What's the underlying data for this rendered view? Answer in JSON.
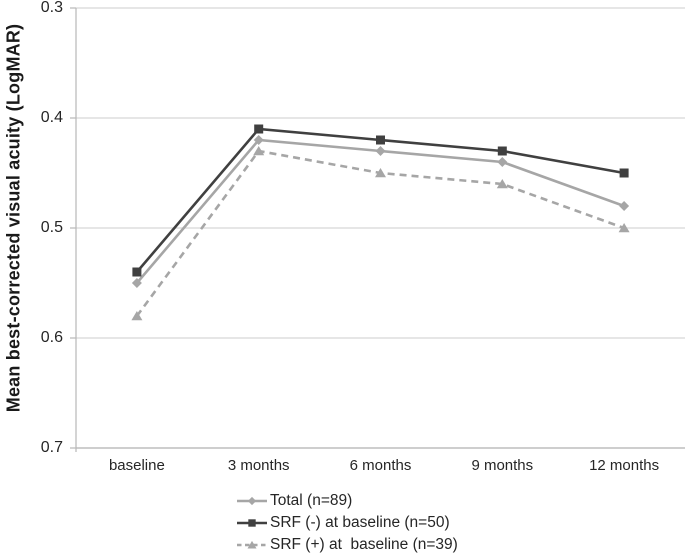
{
  "chart_data": {
    "type": "line",
    "title": "",
    "xlabel": "",
    "ylabel": "Mean best-corrected visual acuity (LogMAR)",
    "categories": [
      "baseline",
      "3 months",
      "6 months",
      "9 months",
      "12 months"
    ],
    "series": [
      {
        "name": "Total (n=89)",
        "values": [
          0.55,
          0.42,
          0.43,
          0.44,
          0.48
        ],
        "color": "#a6a6a6",
        "marker": "diamond",
        "line_style": "solid"
      },
      {
        "name": "SRF (-) at baseline (n=50)",
        "values": [
          0.54,
          0.41,
          0.42,
          0.43,
          0.45
        ],
        "color": "#404040",
        "marker": "square",
        "line_style": "solid"
      },
      {
        "name": "SRF (+) at  baseline (n=39)",
        "values": [
          0.58,
          0.43,
          0.45,
          0.46,
          0.5
        ],
        "color": "#a6a6a6",
        "marker": "triangle",
        "line_style": "dashed"
      }
    ],
    "y_ticks": [
      0.3,
      0.4,
      0.5,
      0.6,
      0.7
    ],
    "y_tick_labels": [
      "0.3",
      "0.4",
      "0.5",
      "0.6",
      "0.7"
    ],
    "ylim": [
      0.3,
      0.7
    ],
    "y_axis_direction": "increasing-downward",
    "grid": "horizontal",
    "legend_position": "bottom-left"
  },
  "colors": {
    "grid": "#d6d6d6",
    "axis": "#b8b8b8",
    "tick_text": "#262626",
    "background": "#ffffff"
  }
}
